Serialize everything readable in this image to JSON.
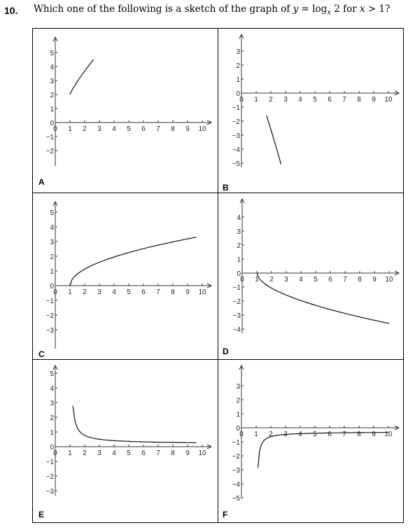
{
  "question": {
    "number": "10.",
    "text_before": "Which one of the following is a sketch of the graph of ",
    "math_y": "y",
    "math_eq": " = log",
    "math_sub": "x",
    "math_after": " 2 for ",
    "math_x": "x",
    "math_cond": " > 1?"
  },
  "options": [
    {
      "label": "A",
      "x_ticks": [
        "0",
        "1",
        "2",
        "3",
        "4",
        "5",
        "6",
        "7",
        "8",
        "9",
        "10"
      ],
      "y_ticks": [
        "5",
        "4",
        "3",
        "2",
        "1",
        "0",
        "−1",
        "−2"
      ],
      "y_range": [
        -2,
        5
      ]
    },
    {
      "label": "B",
      "x_ticks": [
        "0",
        "1",
        "2",
        "3",
        "4",
        "5",
        "6",
        "7",
        "8",
        "9",
        "10"
      ],
      "y_ticks": [
        "3",
        "2",
        "1",
        "0",
        "−1",
        "−2",
        "−3",
        "−4",
        "−5"
      ],
      "y_range": [
        -5,
        3
      ]
    },
    {
      "label": "C",
      "x_ticks": [
        "0",
        "1",
        "2",
        "3",
        "4",
        "5",
        "6",
        "7",
        "8",
        "9",
        "10"
      ],
      "y_ticks": [
        "5",
        "4",
        "3",
        "2",
        "1",
        "0",
        "−1",
        "−2",
        "−3"
      ],
      "y_range": [
        -3,
        5
      ]
    },
    {
      "label": "D",
      "x_ticks": [
        "0",
        "1",
        "2",
        "3",
        "4",
        "5",
        "6",
        "7",
        "8",
        "9",
        "10"
      ],
      "y_ticks": [
        "4",
        "3",
        "2",
        "1",
        "0",
        "−1",
        "−2",
        "−3",
        "−4"
      ],
      "y_range": [
        -4,
        4
      ]
    },
    {
      "label": "E",
      "x_ticks": [
        "0",
        "1",
        "2",
        "3",
        "4",
        "5",
        "6",
        "7",
        "8",
        "9",
        "10"
      ],
      "y_ticks": [
        "5",
        "4",
        "3",
        "2",
        "1",
        "0",
        "−1",
        "−2",
        "−3"
      ],
      "y_range": [
        -3,
        5
      ]
    },
    {
      "label": "F",
      "x_ticks": [
        "0",
        "1",
        "2",
        "3",
        "4",
        "5",
        "6",
        "7",
        "8",
        "9",
        "10"
      ],
      "y_ticks": [
        "3",
        "2",
        "1",
        "0",
        "−1",
        "−2",
        "−3",
        "−4",
        "−5"
      ],
      "y_range": [
        -5,
        3
      ]
    }
  ]
}
